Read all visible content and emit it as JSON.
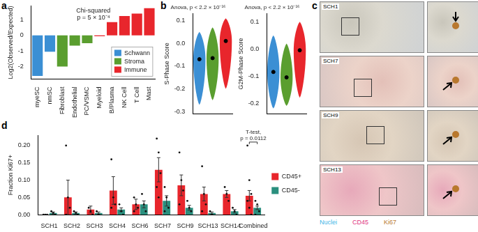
{
  "chart_data": [
    {
      "panel": "a",
      "type": "bar",
      "title": [
        "Chi-squared",
        "p = 5 × 10⁻⁴"
      ],
      "y_label": "Log2(Observed/Expected)",
      "categories": [
        "myeSC",
        "nmSC",
        "Fibroblast",
        "Endothelial",
        "PC/VSMC",
        "Myeloid",
        "B/Plasma",
        "NK Cell",
        "T Cell",
        "Mast"
      ],
      "series": [
        {
          "name": "Schwann",
          "color": "#3b8fd4",
          "values": [
            -2.6,
            -1.05,
            null,
            null,
            null,
            null,
            null,
            null,
            null,
            null
          ]
        },
        {
          "name": "Stroma",
          "color": "#5a9e2f",
          "values": [
            null,
            null,
            -2.0,
            -0.65,
            -0.5,
            null,
            null,
            null,
            null,
            null
          ]
        },
        {
          "name": "Immune",
          "color": "#e8262c",
          "values": [
            null,
            null,
            null,
            null,
            null,
            -0.05,
            0.85,
            1.25,
            1.4,
            1.75
          ]
        }
      ],
      "ylim": [
        -2.8,
        1.9
      ],
      "yticks": [
        -2,
        -1,
        0,
        1
      ],
      "grid": false,
      "legend": "lower right"
    },
    {
      "panel": "b",
      "type": "violin",
      "title": "Anova, p < 2.2 × 10⁻¹⁶",
      "y_label": "S-Phase Score",
      "categories": [
        "Schwann",
        "Stroma",
        "Immune"
      ],
      "colors": [
        "#3b8fd4",
        "#5a9e2f",
        "#e8262c"
      ],
      "min": [
        -0.27,
        -0.25,
        -0.2
      ],
      "max": [
        0.05,
        0.07,
        0.11
      ],
      "means": [
        -0.07,
        -0.065,
        0.01
      ],
      "ylim": [
        -0.31,
        0.13
      ],
      "yticks": [
        -0.3,
        -0.2,
        -0.1,
        {
          "value": 0,
          "label": "0.0"
        },
        0.1
      ],
      "tick_labels": "y",
      "grid": false
    },
    {
      "type": "violin",
      "title": "Anova, p < 2.2 × 10⁻¹⁶",
      "y_label": "G2M-Phase Score",
      "categories": [
        "Schwann",
        "Stroma",
        "Immune"
      ],
      "colors": [
        "#3b8fd4",
        "#5a9e2f",
        "#e8262c"
      ],
      "min": [
        -0.22,
        -0.21,
        -0.18
      ],
      "max": [
        0.05,
        0.02,
        0.1
      ],
      "means": [
        -0.085,
        -0.105,
        -0.005
      ],
      "ylim": [
        -0.24,
        0.13
      ],
      "yticks": [
        -0.2,
        -0.1,
        {
          "value": 0,
          "label": "0.0"
        },
        0.1
      ],
      "tick_labels": "y",
      "grid": false
    },
    {
      "panel": "d",
      "type": "bar",
      "y_label": "Fraction Ki67+",
      "categories": [
        "SCH1",
        "SCH2",
        "SCH3",
        "SCH4",
        "SCH6",
        "SCH7",
        "SCH9",
        "SCH13",
        "SCH14",
        "Combined"
      ],
      "series": [
        {
          "name": "CD45+",
          "color": "#e8262c",
          "values": [
            0,
            0.05,
            0.015,
            0.07,
            0.03,
            0.13,
            0.085,
            0.06,
            0.06,
            0.055
          ],
          "errors": [
            0,
            0.05,
            0.01,
            0.04,
            0.015,
            0.035,
            0.03,
            0.02,
            0.01,
            0.015
          ],
          "points": [
            [
              0,
              0,
              0
            ],
            [
              0.2,
              0.05,
              0.02,
              0
            ],
            [
              0.02,
              0.01,
              0
            ],
            [
              0.16,
              0.05,
              0.03,
              0.02
            ],
            [
              0.05,
              0.03,
              0.02,
              0.01
            ],
            [
              0.22,
              0.18,
              0.12,
              0.08,
              0.05
            ],
            [
              0.18,
              0.1,
              0.07,
              0.03
            ],
            [
              0.14,
              0.06,
              0.03,
              0.01
            ],
            [
              0.08,
              0.06,
              0.04
            ],
            [
              0.2,
              0.1,
              0.06,
              0.04,
              0.02,
              0
            ]
          ]
        },
        {
          "name": "CD45-",
          "color": "#2a8f7e",
          "values": [
            0.005,
            0.005,
            0.005,
            0.015,
            0.03,
            0.04,
            0.02,
            0.005,
            0.01,
            0.02
          ],
          "errors": [
            0.003,
            0.003,
            0.003,
            0.005,
            0.01,
            0.015,
            0.007,
            0.003,
            0.005,
            0.005
          ],
          "points": [
            [
              0.01,
              0.005,
              0
            ],
            [
              0.01,
              0.005,
              0
            ],
            [
              0.01,
              0
            ],
            [
              0.03,
              0.01,
              0
            ],
            [
              0.06,
              0.03,
              0.01
            ],
            [
              0.08,
              0.05,
              0.02,
              0.01
            ],
            [
              0.04,
              0.02,
              0.01
            ],
            [
              0.01,
              0
            ],
            [
              0.02,
              0.01,
              0
            ],
            [
              0.04,
              0.03,
              0.01,
              0
            ]
          ]
        }
      ],
      "annotation": {
        "text": [
          "T-test,",
          "p = 0.0112"
        ],
        "category": "Combined"
      },
      "ylim": [
        0,
        0.23
      ],
      "yticks": [
        {
          "value": 0,
          "label": "0.00"
        },
        0.05,
        {
          "value": 0.1,
          "label": "0.10"
        },
        0.15,
        {
          "value": 0.2,
          "label": "0.20"
        }
      ],
      "grid": false,
      "legend": "right"
    }
  ],
  "image_panel": {
    "panel": "c",
    "samples": [
      "SCH1",
      "SCH7",
      "SCH9",
      "SCH13"
    ],
    "stains": [
      {
        "name": "Nuclei",
        "color": "#3fb4e6"
      },
      {
        "name": "CD45",
        "color": "#e0337f"
      },
      {
        "name": "Ki67",
        "color": "#b8782e"
      }
    ]
  }
}
